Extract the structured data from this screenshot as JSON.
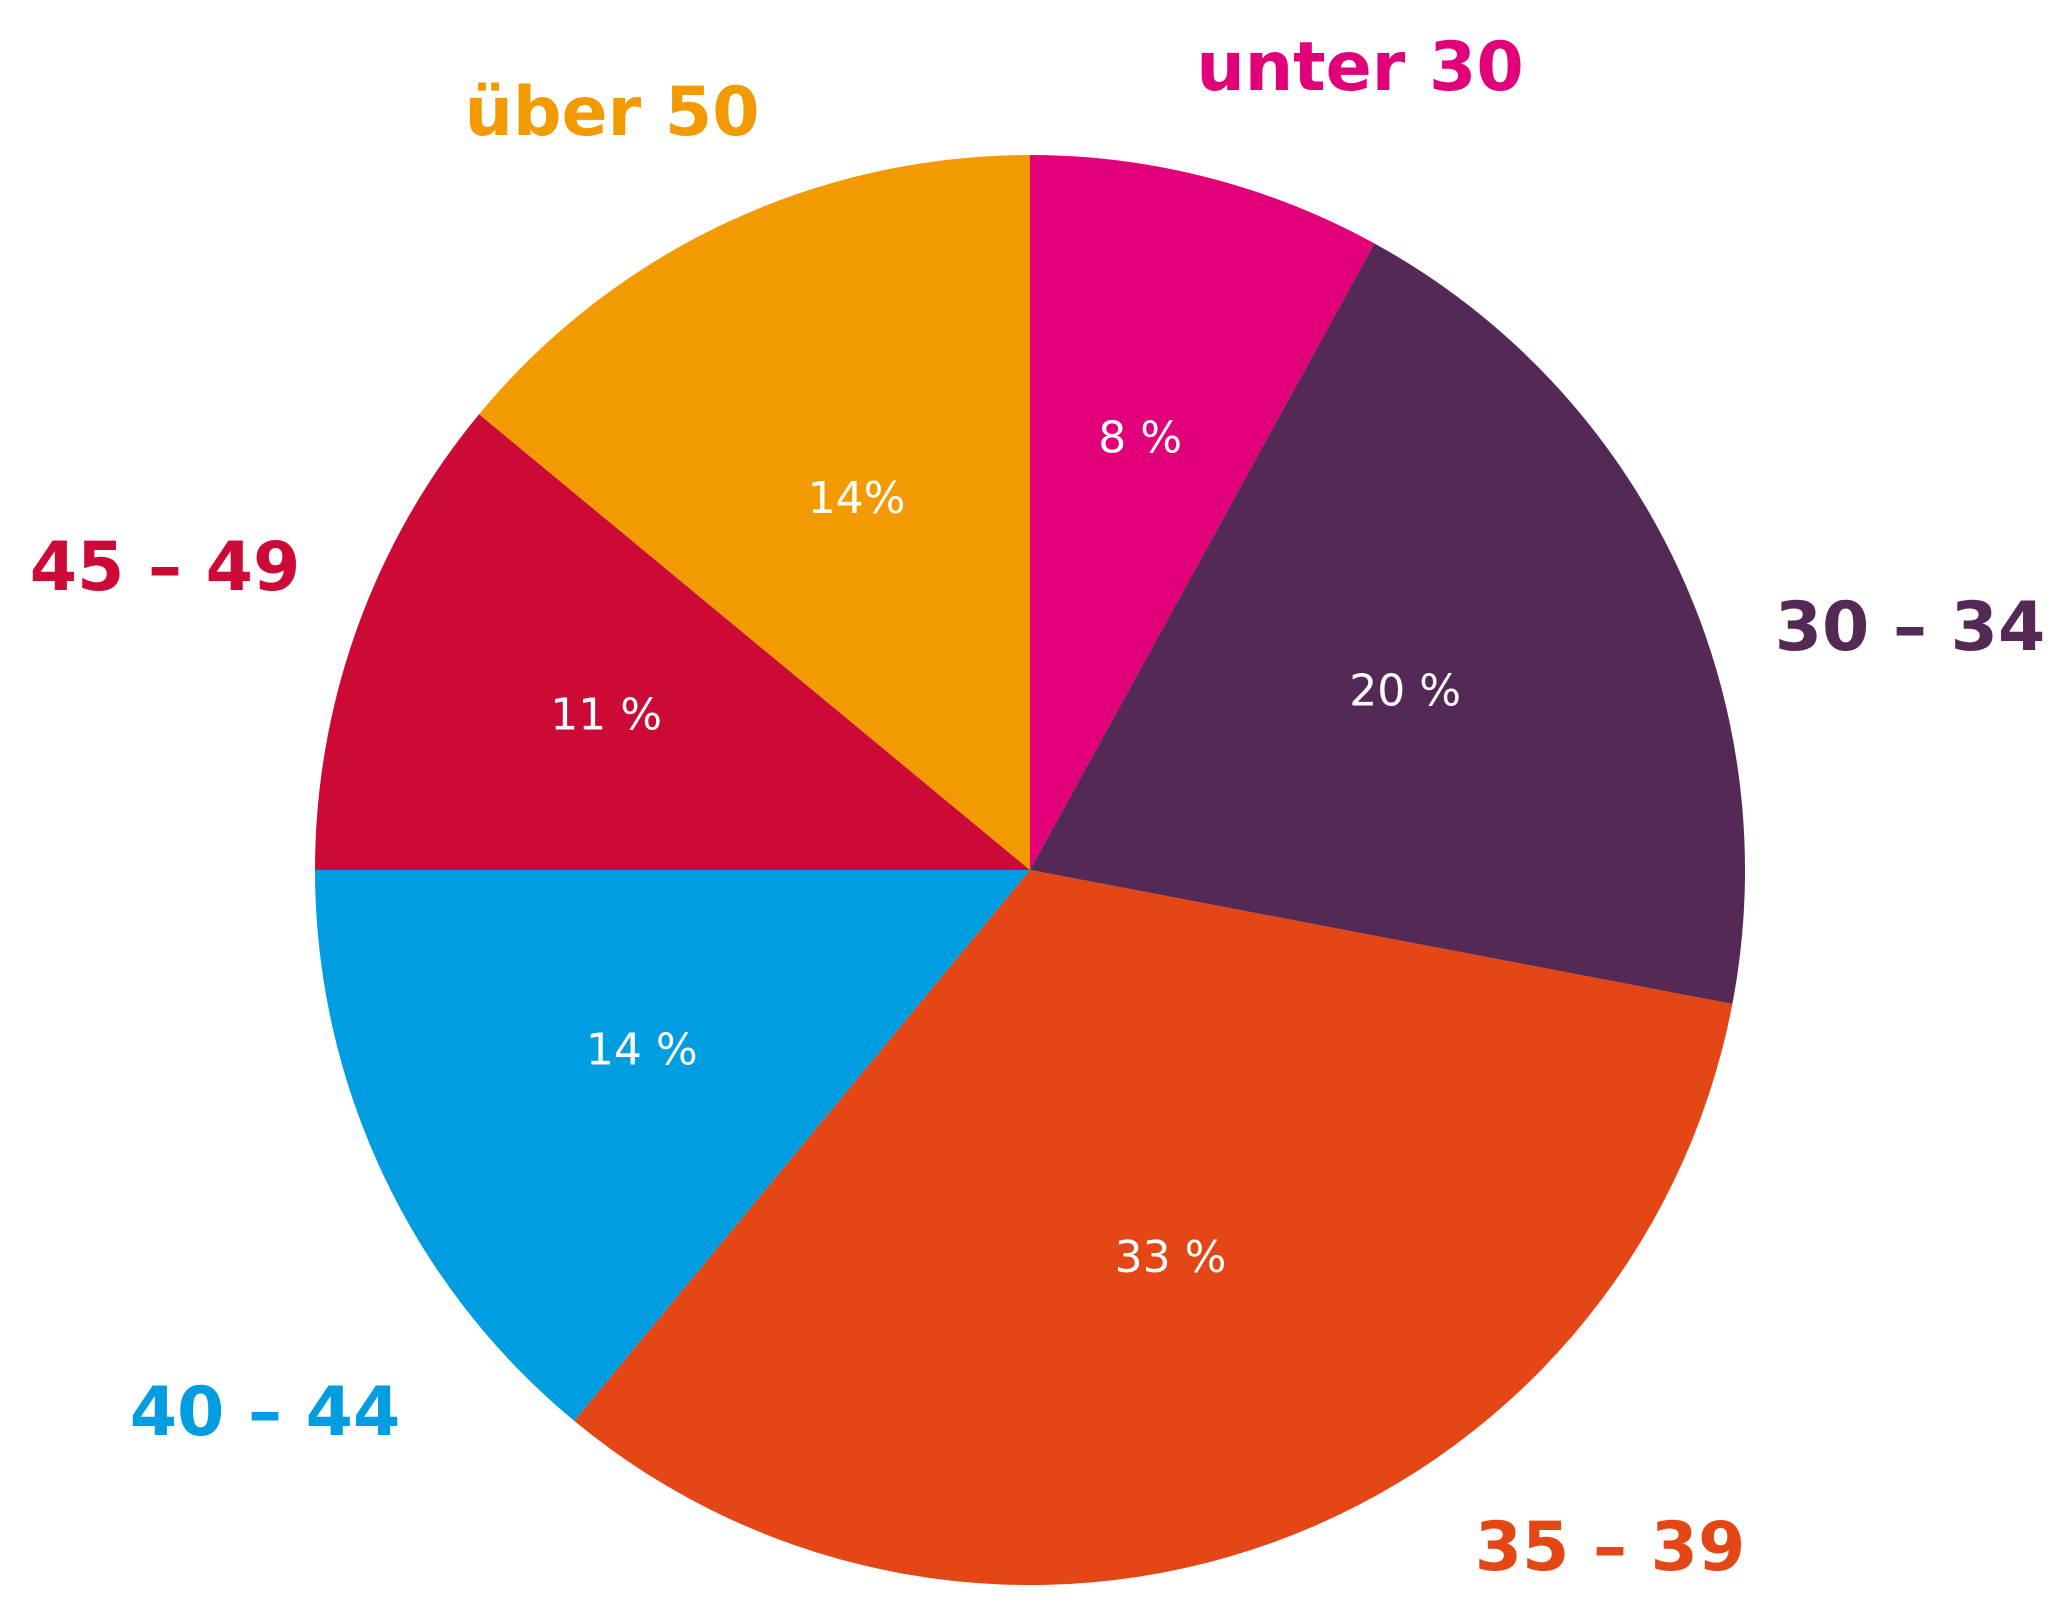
{
  "chart_data": {
    "type": "pie",
    "slices": [
      {
        "category": "unter 30",
        "value": 8,
        "value_label": "8 %",
        "color": "#E2007A"
      },
      {
        "category": "30 – 34",
        "value": 20,
        "value_label": "20 %",
        "color": "#542955"
      },
      {
        "category": "35 – 39",
        "value": 33,
        "value_label": "33 %",
        "color": "#E44615"
      },
      {
        "category": "40 – 44",
        "value": 14,
        "value_label": "14 %",
        "color": "#009EE0"
      },
      {
        "category": "45 – 49",
        "value": 11,
        "value_label": "11 %",
        "color": "#CC0A35"
      },
      {
        "category": "über 50",
        "value": 14,
        "value_label": "14%",
        "color": "#F39A00"
      }
    ],
    "start_angle": "12 o'clock",
    "direction": "clockwise",
    "legend": "none",
    "title": ""
  }
}
